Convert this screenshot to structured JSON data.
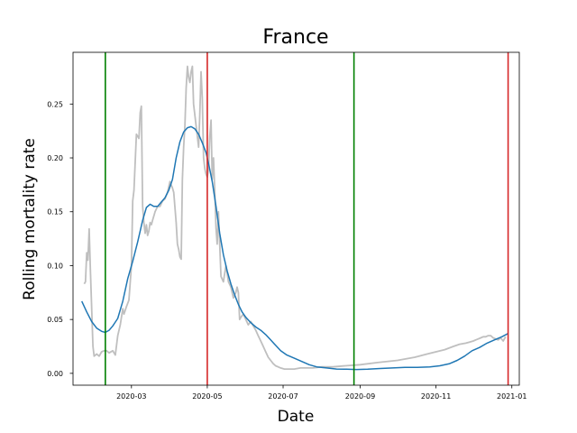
{
  "chart_data": {
    "type": "line",
    "title": "France",
    "xlabel": "Date",
    "ylabel": "Rolling mortality rate",
    "x_range": [
      "2020-01-14",
      "2021-01-07"
    ],
    "ylim": [
      -0.011,
      0.298
    ],
    "x_ticks": [
      "2020-03-01",
      "2020-05-01",
      "2020-07-01",
      "2020-09-01",
      "2020-11-01",
      "2021-01-01"
    ],
    "x_tick_labels": [
      "2020-03",
      "2020-05",
      "2020-07",
      "2020-09",
      "2020-11",
      "2021-01"
    ],
    "y_ticks": [
      0.0,
      0.05,
      0.1,
      0.15,
      0.2,
      0.25
    ],
    "y_tick_labels": [
      "0.00",
      "0.05",
      "0.10",
      "0.15",
      "0.20",
      "0.25"
    ],
    "grid": false,
    "legend": "none",
    "series": [
      {
        "role": "raw",
        "color": "#bfbfbf",
        "x": [
          "2020-01-23",
          "2020-01-24",
          "2020-01-25",
          "2020-01-26",
          "2020-01-27",
          "2020-01-28",
          "2020-01-29",
          "2020-01-30",
          "2020-01-31",
          "2020-02-02",
          "2020-02-04",
          "2020-02-06",
          "2020-02-08",
          "2020-02-10",
          "2020-02-12",
          "2020-02-15",
          "2020-02-17",
          "2020-02-19",
          "2020-02-21",
          "2020-02-23",
          "2020-02-24",
          "2020-02-26",
          "2020-02-28",
          "2020-03-01",
          "2020-03-02",
          "2020-03-03",
          "2020-03-05",
          "2020-03-07",
          "2020-03-08",
          "2020-03-09",
          "2020-03-10",
          "2020-03-11",
          "2020-03-12",
          "2020-03-13",
          "2020-03-14",
          "2020-03-15",
          "2020-03-16",
          "2020-03-17",
          "2020-03-18",
          "2020-03-20",
          "2020-03-22",
          "2020-03-24",
          "2020-03-26",
          "2020-03-28",
          "2020-03-30",
          "2020-04-01",
          "2020-04-02",
          "2020-04-03",
          "2020-04-04",
          "2020-04-06",
          "2020-04-07",
          "2020-04-08",
          "2020-04-09",
          "2020-04-10",
          "2020-04-11",
          "2020-04-12",
          "2020-04-13",
          "2020-04-14",
          "2020-04-15",
          "2020-04-16",
          "2020-04-17",
          "2020-04-18",
          "2020-04-19",
          "2020-04-20",
          "2020-04-22",
          "2020-04-24",
          "2020-04-25",
          "2020-04-26",
          "2020-04-27",
          "2020-04-28",
          "2020-04-29",
          "2020-04-30",
          "2020-05-01",
          "2020-05-02",
          "2020-05-03",
          "2020-05-04",
          "2020-05-05",
          "2020-05-06",
          "2020-05-07",
          "2020-05-08",
          "2020-05-09",
          "2020-05-10",
          "2020-05-12",
          "2020-05-14",
          "2020-05-16",
          "2020-05-18",
          "2020-05-20",
          "2020-05-22",
          "2020-05-24",
          "2020-05-25",
          "2020-05-26",
          "2020-05-27",
          "2020-05-28",
          "2020-05-30",
          "2020-06-01",
          "2020-06-03",
          "2020-06-05",
          "2020-06-07",
          "2020-06-09",
          "2020-06-11",
          "2020-06-13",
          "2020-06-15",
          "2020-06-17",
          "2020-06-19",
          "2020-06-21",
          "2020-06-23",
          "2020-06-25",
          "2020-06-27",
          "2020-06-29",
          "2020-07-02",
          "2020-07-06",
          "2020-07-10",
          "2020-07-15",
          "2020-07-20",
          "2020-07-25",
          "2020-08-01",
          "2020-08-10",
          "2020-08-20",
          "2020-09-01",
          "2020-09-15",
          "2020-10-01",
          "2020-10-15",
          "2020-10-25",
          "2020-11-01",
          "2020-11-08",
          "2020-11-15",
          "2020-11-20",
          "2020-11-25",
          "2020-11-28",
          "2020-12-01",
          "2020-12-03",
          "2020-12-05",
          "2020-12-07",
          "2020-12-09",
          "2020-12-11",
          "2020-12-13",
          "2020-12-15",
          "2020-12-17",
          "2020-12-19",
          "2020-12-21",
          "2020-12-23",
          "2020-12-25",
          "2020-12-27"
        ],
        "y": [
          0.083,
          0.085,
          0.112,
          0.105,
          0.134,
          0.095,
          0.06,
          0.025,
          0.016,
          0.018,
          0.016,
          0.02,
          0.021,
          0.021,
          0.019,
          0.021,
          0.017,
          0.035,
          0.045,
          0.06,
          0.055,
          0.062,
          0.068,
          0.1,
          0.16,
          0.17,
          0.222,
          0.218,
          0.242,
          0.248,
          0.155,
          0.14,
          0.13,
          0.138,
          0.128,
          0.132,
          0.14,
          0.138,
          0.142,
          0.15,
          0.155,
          0.155,
          0.16,
          0.162,
          0.168,
          0.178,
          0.175,
          0.172,
          0.168,
          0.14,
          0.12,
          0.115,
          0.108,
          0.106,
          0.18,
          0.21,
          0.23,
          0.265,
          0.285,
          0.275,
          0.27,
          0.28,
          0.285,
          0.25,
          0.23,
          0.21,
          0.24,
          0.28,
          0.255,
          0.2,
          0.19,
          0.185,
          0.182,
          0.19,
          0.22,
          0.235,
          0.18,
          0.2,
          0.17,
          0.135,
          0.12,
          0.15,
          0.09,
          0.085,
          0.1,
          0.085,
          0.08,
          0.07,
          0.075,
          0.08,
          0.075,
          0.05,
          0.052,
          0.055,
          0.05,
          0.045,
          0.048,
          0.044,
          0.04,
          0.035,
          0.03,
          0.025,
          0.02,
          0.015,
          0.012,
          0.009,
          0.007,
          0.006,
          0.005,
          0.004,
          0.004,
          0.004,
          0.005,
          0.005,
          0.005,
          0.006,
          0.006,
          0.007,
          0.008,
          0.01,
          0.012,
          0.015,
          0.018,
          0.02,
          0.022,
          0.025,
          0.027,
          0.028,
          0.029,
          0.03,
          0.031,
          0.032,
          0.033,
          0.034,
          0.034,
          0.035,
          0.035,
          0.033,
          0.032,
          0.031,
          0.033,
          0.03,
          0.034
        ]
      },
      {
        "role": "smoothed",
        "color": "#1f77b4",
        "x": [
          "2020-01-21",
          "2020-01-25",
          "2020-01-29",
          "2020-02-02",
          "2020-02-06",
          "2020-02-09",
          "2020-02-12",
          "2020-02-15",
          "2020-02-19",
          "2020-02-23",
          "2020-02-27",
          "2020-03-02",
          "2020-03-06",
          "2020-03-10",
          "2020-03-13",
          "2020-03-16",
          "2020-03-19",
          "2020-03-22",
          "2020-03-25",
          "2020-03-28",
          "2020-03-31",
          "2020-04-03",
          "2020-04-06",
          "2020-04-09",
          "2020-04-12",
          "2020-04-15",
          "2020-04-18",
          "2020-04-21",
          "2020-04-24",
          "2020-04-27",
          "2020-04-30",
          "2020-05-02",
          "2020-05-05",
          "2020-05-08",
          "2020-05-11",
          "2020-05-14",
          "2020-05-17",
          "2020-05-20",
          "2020-05-23",
          "2020-05-26",
          "2020-05-29",
          "2020-06-01",
          "2020-06-05",
          "2020-06-09",
          "2020-06-13",
          "2020-06-17",
          "2020-06-21",
          "2020-06-25",
          "2020-06-29",
          "2020-07-04",
          "2020-07-10",
          "2020-07-16",
          "2020-07-22",
          "2020-07-28",
          "2020-08-05",
          "2020-08-13",
          "2020-08-21",
          "2020-08-29",
          "2020-09-07",
          "2020-09-17",
          "2020-09-27",
          "2020-10-07",
          "2020-10-17",
          "2020-10-27",
          "2020-11-04",
          "2020-11-12",
          "2020-11-18",
          "2020-11-24",
          "2020-11-30",
          "2020-12-06",
          "2020-12-12",
          "2020-12-18",
          "2020-12-24",
          "2020-12-29"
        ],
        "y": [
          0.067,
          0.057,
          0.048,
          0.042,
          0.039,
          0.038,
          0.04,
          0.044,
          0.051,
          0.067,
          0.088,
          0.104,
          0.122,
          0.142,
          0.154,
          0.157,
          0.155,
          0.155,
          0.159,
          0.163,
          0.17,
          0.18,
          0.2,
          0.215,
          0.224,
          0.228,
          0.229,
          0.227,
          0.222,
          0.214,
          0.205,
          0.195,
          0.178,
          0.155,
          0.13,
          0.11,
          0.095,
          0.083,
          0.073,
          0.064,
          0.057,
          0.052,
          0.047,
          0.043,
          0.04,
          0.036,
          0.031,
          0.026,
          0.021,
          0.017,
          0.014,
          0.011,
          0.008,
          0.006,
          0.005,
          0.004,
          0.0038,
          0.0036,
          0.0038,
          0.0045,
          0.005,
          0.0055,
          0.0055,
          0.006,
          0.007,
          0.009,
          0.012,
          0.016,
          0.021,
          0.024,
          0.028,
          0.031,
          0.034,
          0.037
        ]
      }
    ],
    "vertical_lines": [
      {
        "x": "2020-02-09",
        "color": "#008000"
      },
      {
        "x": "2020-05-01",
        "color": "#d62728"
      },
      {
        "x": "2020-08-27",
        "color": "#008000"
      },
      {
        "x": "2020-12-29",
        "color": "#d62728"
      }
    ]
  }
}
